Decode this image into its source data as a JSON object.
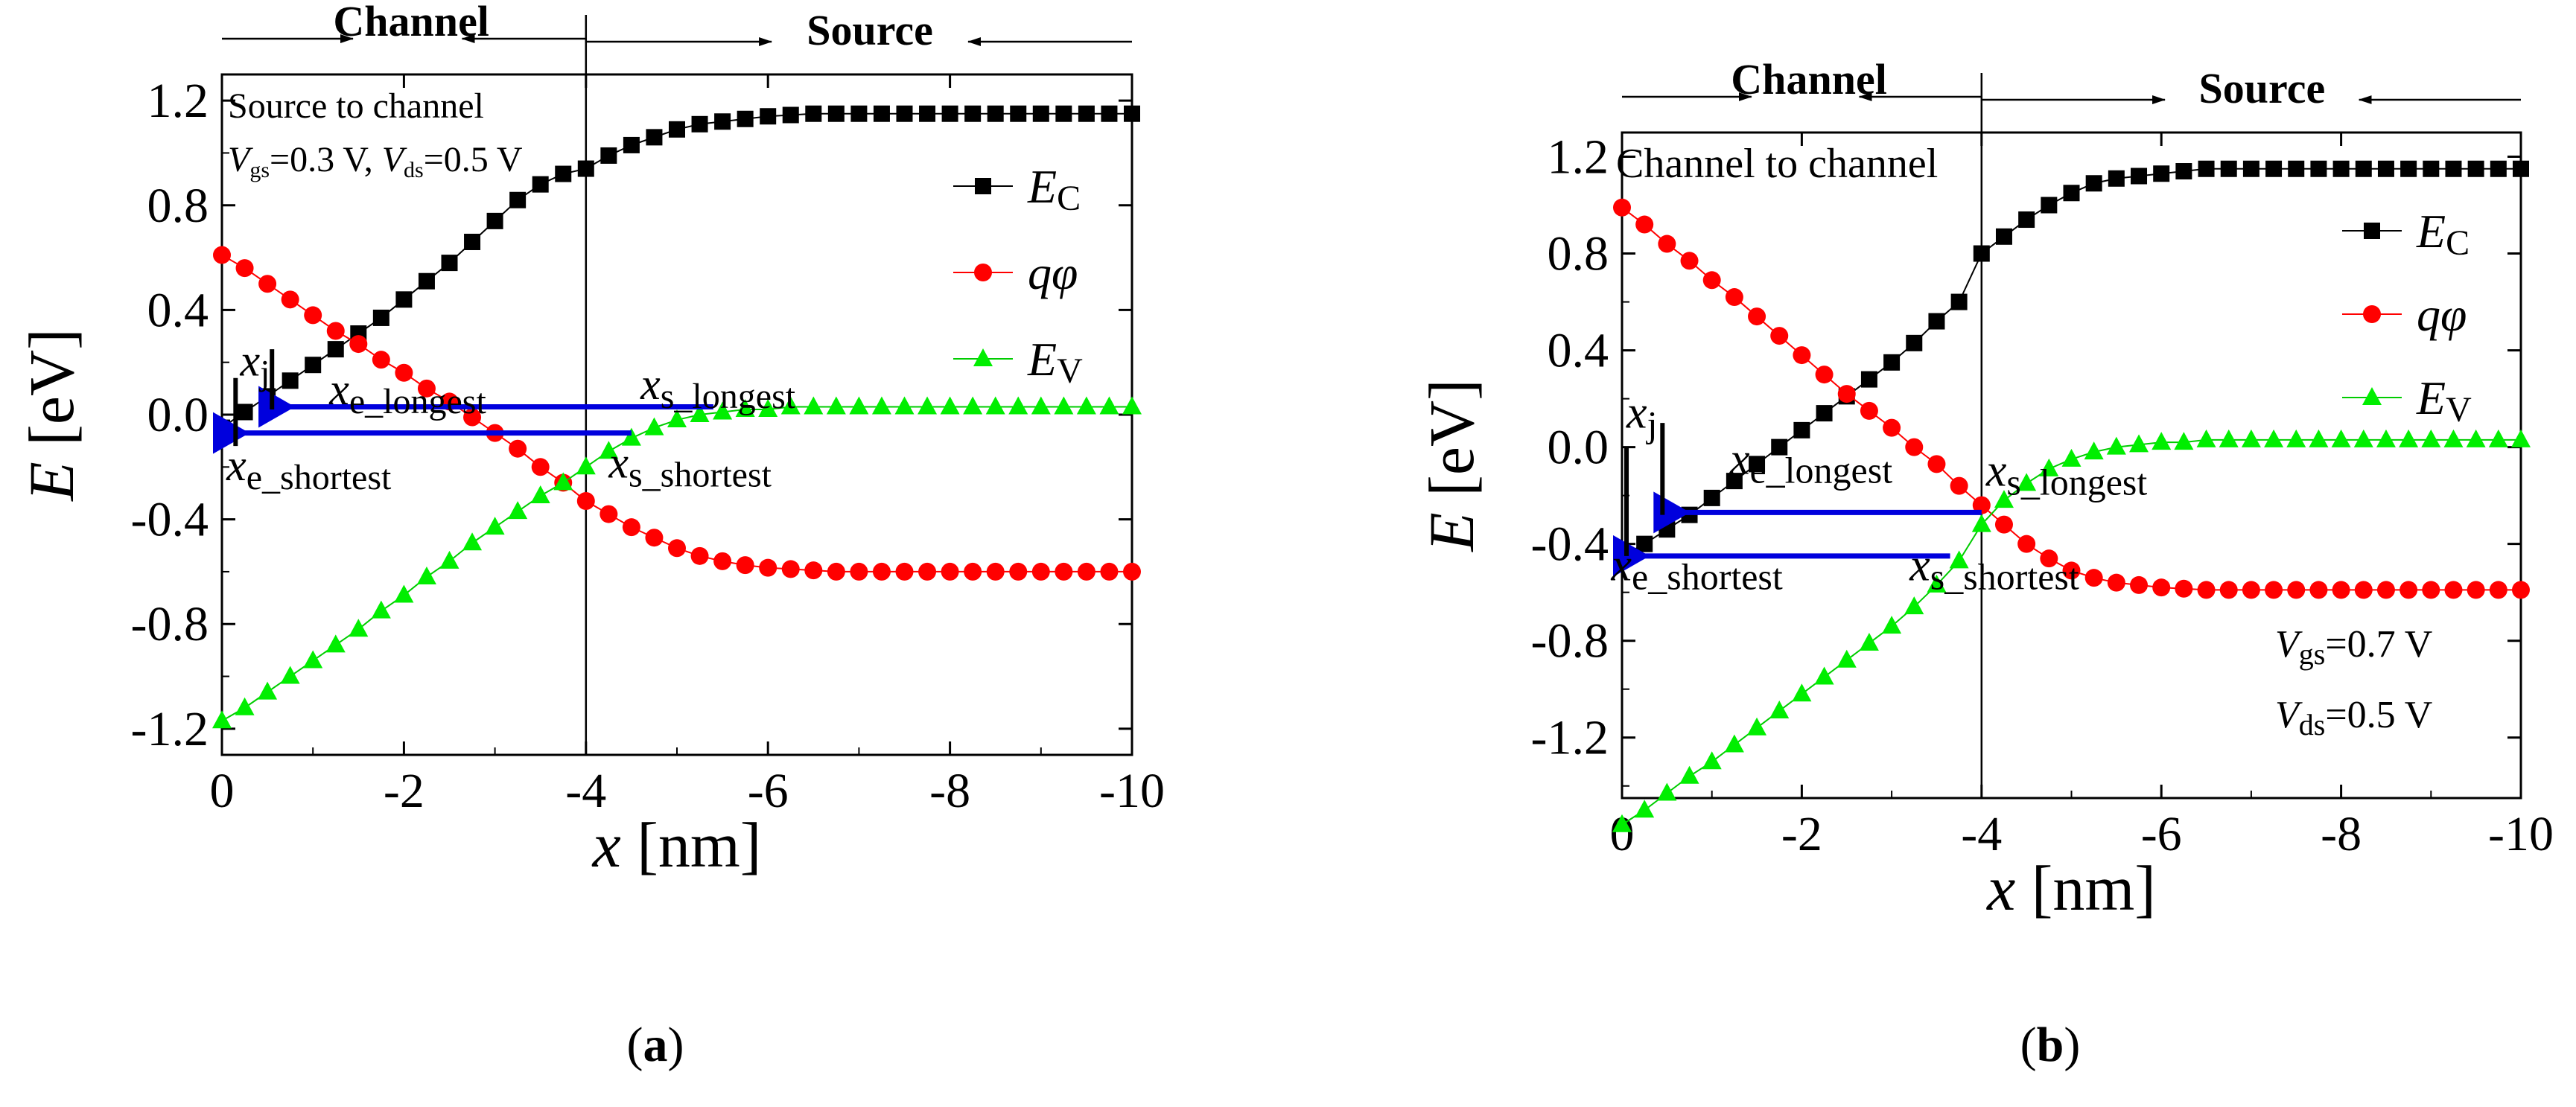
{
  "chart_data": [
    {
      "type": "line",
      "panel_label": "a",
      "x": [
        0,
        -0.25,
        -0.5,
        -0.75,
        -1,
        -1.25,
        -1.5,
        -1.75,
        -2,
        -2.25,
        -2.5,
        -2.75,
        -3,
        -3.25,
        -3.5,
        -3.75,
        -4,
        -4.25,
        -4.5,
        -4.75,
        -5,
        -5.25,
        -5.5,
        -5.75,
        -6,
        -6.25,
        -6.5,
        -6.75,
        -7,
        -7.25,
        -7.5,
        -7.75,
        -8,
        -8.25,
        -8.5,
        -8.75,
        -9,
        -9.25,
        -9.5,
        -9.75,
        -10
      ],
      "series": [
        {
          "name": "Ec",
          "color": "#000000",
          "marker": "square",
          "values": [
            -0.05,
            0.01,
            0.07,
            0.13,
            0.19,
            0.25,
            0.31,
            0.37,
            0.44,
            0.51,
            0.58,
            0.66,
            0.74,
            0.82,
            0.88,
            0.92,
            0.94,
            0.99,
            1.03,
            1.06,
            1.09,
            1.11,
            1.12,
            1.13,
            1.14,
            1.145,
            1.15,
            1.15,
            1.15,
            1.15,
            1.15,
            1.15,
            1.15,
            1.15,
            1.15,
            1.15,
            1.15,
            1.15,
            1.15,
            1.15,
            1.15
          ]
        },
        {
          "name": "qφ",
          "color": "#ff0000",
          "marker": "circle",
          "values": [
            0.61,
            0.56,
            0.5,
            0.44,
            0.38,
            0.32,
            0.27,
            0.21,
            0.16,
            0.1,
            0.05,
            -0.01,
            -0.07,
            -0.13,
            -0.2,
            -0.26,
            -0.33,
            -0.38,
            -0.43,
            -0.47,
            -0.51,
            -0.54,
            -0.56,
            -0.575,
            -0.585,
            -0.59,
            -0.595,
            -0.6,
            -0.6,
            -0.6,
            -0.6,
            -0.6,
            -0.6,
            -0.6,
            -0.6,
            -0.6,
            -0.6,
            -0.6,
            -0.6,
            -0.6,
            -0.6
          ]
        },
        {
          "name": "Ev",
          "color": "#00ee00",
          "marker": "triangle",
          "values": [
            -1.17,
            -1.12,
            -1.06,
            -1.0,
            -0.94,
            -0.88,
            -0.82,
            -0.75,
            -0.69,
            -0.62,
            -0.56,
            -0.49,
            -0.43,
            -0.37,
            -0.31,
            -0.26,
            -0.2,
            -0.14,
            -0.09,
            -0.05,
            -0.02,
            0.0,
            0.01,
            0.02,
            0.02,
            0.03,
            0.03,
            0.03,
            0.03,
            0.03,
            0.03,
            0.03,
            0.03,
            0.03,
            0.03,
            0.03,
            0.03,
            0.03,
            0.03,
            0.03,
            0.03
          ]
        }
      ],
      "xlabel": "x [nm]",
      "ylabel": "E [eV]",
      "xlim": [
        0,
        -10
      ],
      "ylim": [
        -1.3,
        1.3
      ],
      "xticks": [
        0,
        -2,
        -4,
        -6,
        -8,
        -10
      ],
      "yticks": [
        1.2,
        0.8,
        0.4,
        0.0,
        -0.4,
        -0.8,
        -1.2
      ],
      "xtick_labels": [
        "0",
        "-2",
        "-4",
        "-6",
        "-8",
        "-10"
      ],
      "ytick_labels": [
        "1.2",
        "0.8",
        "0.4",
        "0.0",
        "-0.4",
        "-0.8",
        "-1.2"
      ],
      "legend_labels": [
        "E",
        "q",
        "φ",
        "E"
      ],
      "legend_subscripts": [
        "C",
        "V"
      ],
      "legend_position": "right",
      "channel_source_boundary_x": -4,
      "region_labels": [
        "Channel",
        "Source"
      ],
      "condition_title": "Source to channel",
      "condition_v": "V",
      "condition_gs": "gs",
      "condition_gs_value": "=0.3 V, ",
      "condition_ds": "ds",
      "condition_ds_value": "=0.5 V",
      "arrows": [
        {
          "from_x": -5.4,
          "to_x": -0.5,
          "y": 0.03
        },
        {
          "from_x": -4.5,
          "to_x": 0.0,
          "y": -0.07
        }
      ],
      "annotations": {
        "xj": [
          "x",
          "j"
        ],
        "xe_longest": [
          "x",
          "e_longest"
        ],
        "xs_longest": [
          "x",
          "s_longest"
        ],
        "xe_shortest": [
          "x",
          "e_shortest"
        ],
        "xs_shortest": [
          "x",
          "s_shortest"
        ]
      }
    },
    {
      "type": "line",
      "panel_label": "b",
      "x": [
        0,
        -0.25,
        -0.5,
        -0.75,
        -1,
        -1.25,
        -1.5,
        -1.75,
        -2,
        -2.25,
        -2.5,
        -2.75,
        -3,
        -3.25,
        -3.5,
        -3.75,
        -4,
        -4.25,
        -4.5,
        -4.75,
        -5,
        -5.25,
        -5.5,
        -5.75,
        -6,
        -6.25,
        -6.5,
        -6.75,
        -7,
        -7.25,
        -7.5,
        -7.75,
        -8,
        -8.25,
        -8.5,
        -8.75,
        -9,
        -9.25,
        -9.5,
        -9.75,
        -10
      ],
      "series": [
        {
          "name": "Ec",
          "color": "#000000",
          "marker": "square",
          "values": [
            -0.45,
            -0.4,
            -0.34,
            -0.28,
            -0.21,
            -0.14,
            -0.07,
            0.0,
            0.07,
            0.14,
            0.21,
            0.28,
            0.35,
            0.43,
            0.52,
            0.6,
            0.8,
            0.87,
            0.94,
            1.0,
            1.05,
            1.09,
            1.11,
            1.12,
            1.13,
            1.14,
            1.15,
            1.15,
            1.15,
            1.15,
            1.15,
            1.15,
            1.15,
            1.15,
            1.15,
            1.15,
            1.15,
            1.15,
            1.15,
            1.15,
            1.15
          ]
        },
        {
          "name": "qφ",
          "color": "#ff0000",
          "marker": "circle",
          "values": [
            0.99,
            0.92,
            0.84,
            0.77,
            0.69,
            0.62,
            0.54,
            0.46,
            0.38,
            0.3,
            0.22,
            0.15,
            0.08,
            0.0,
            -0.07,
            -0.16,
            -0.24,
            -0.32,
            -0.4,
            -0.46,
            -0.51,
            -0.54,
            -0.56,
            -0.57,
            -0.58,
            -0.585,
            -0.59,
            -0.59,
            -0.59,
            -0.59,
            -0.59,
            -0.59,
            -0.59,
            -0.59,
            -0.59,
            -0.59,
            -0.59,
            -0.59,
            -0.59,
            -0.59,
            -0.59
          ]
        },
        {
          "name": "Ev",
          "color": "#00ee00",
          "marker": "triangle",
          "values": [
            -1.56,
            -1.5,
            -1.43,
            -1.36,
            -1.3,
            -1.23,
            -1.16,
            -1.09,
            -1.02,
            -0.95,
            -0.88,
            -0.81,
            -0.74,
            -0.66,
            -0.57,
            -0.47,
            -0.32,
            -0.22,
            -0.15,
            -0.09,
            -0.05,
            -0.02,
            0.0,
            0.01,
            0.02,
            0.02,
            0.03,
            0.03,
            0.03,
            0.03,
            0.03,
            0.03,
            0.03,
            0.03,
            0.03,
            0.03,
            0.03,
            0.03,
            0.03,
            0.03,
            0.03
          ]
        }
      ],
      "xlabel": "x [nm]",
      "ylabel": "E [eV]",
      "xlim": [
        0,
        -10
      ],
      "ylim": [
        -1.45,
        1.3
      ],
      "xticks": [
        0,
        -2,
        -4,
        -6,
        -8,
        -10
      ],
      "yticks": [
        1.2,
        0.8,
        0.4,
        0.0,
        -0.4,
        -0.8,
        -1.2
      ],
      "xtick_labels": [
        "0",
        "-2",
        "-4",
        "-6",
        "-8",
        "-10"
      ],
      "ytick_labels": [
        "1.2",
        "0.8",
        "0.4",
        "0.0",
        "-0.4",
        "-0.8",
        "-1.2"
      ],
      "legend_labels": [
        "E",
        "q",
        "φ",
        "E"
      ],
      "legend_subscripts": [
        "C",
        "V"
      ],
      "legend_position": "right",
      "channel_source_boundary_x": -4,
      "region_labels": [
        "Channel",
        "Source"
      ],
      "condition_title": "Channel to channel",
      "condition_v": "V",
      "condition_gs": "gs",
      "condition_gs_value": "=0.7 V",
      "condition_ds": "ds",
      "condition_ds_value": "=0.5 V",
      "arrows": [
        {
          "from_x": -4.0,
          "to_x": -0.45,
          "y": -0.27
        },
        {
          "from_x": -3.65,
          "to_x": 0.0,
          "y": -0.45
        }
      ],
      "annotations": {
        "xj": [
          "x",
          "j"
        ],
        "xe_longest": [
          "x",
          "e_longest"
        ],
        "xs_longest": [
          "x",
          "s_longest"
        ],
        "xe_shortest": [
          "x",
          "e_shortest"
        ],
        "xs_shortest": [
          "x",
          "s_shortest"
        ]
      }
    }
  ],
  "captions": [
    "(a)",
    "(b)"
  ]
}
